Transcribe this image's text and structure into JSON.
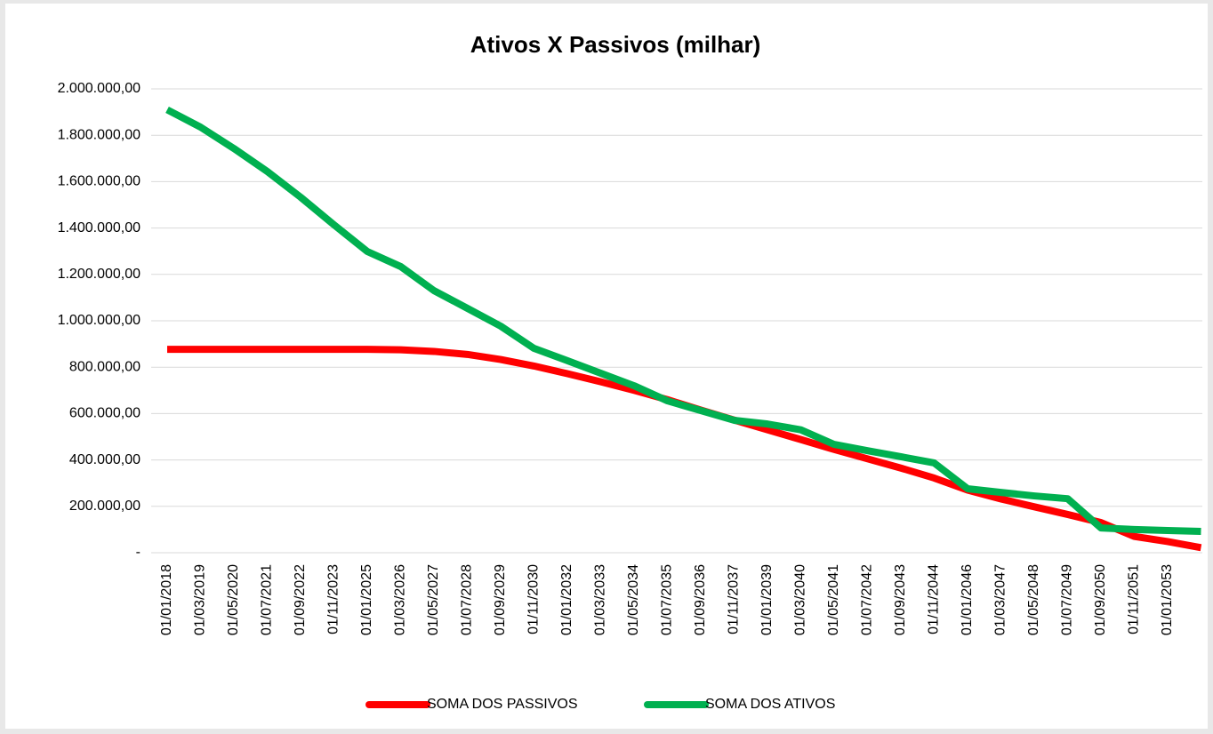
{
  "chart_data": {
    "type": "line",
    "title": "Ativos X Passivos (milhar)",
    "categories": [
      "01/01/2018",
      "01/03/2019",
      "01/05/2020",
      "01/07/2021",
      "01/09/2022",
      "01/11/2023",
      "01/01/2025",
      "01/03/2026",
      "01/05/2027",
      "01/07/2028",
      "01/09/2029",
      "01/11/2030",
      "01/01/2032",
      "01/03/2033",
      "01/05/2034",
      "01/07/2035",
      "01/09/2036",
      "01/11/2037",
      "01/01/2039",
      "01/03/2040",
      "01/05/2041",
      "01/07/2042",
      "01/09/2043",
      "01/11/2044",
      "01/01/2046",
      "01/03/2047",
      "01/05/2048",
      "01/07/2049",
      "01/09/2050",
      "01/11/2051",
      "01/01/2053",
      null
    ],
    "series": [
      {
        "name": "SOMA DOS PASSIVOS",
        "color": "#ff0000",
        "values": [
          877000,
          877000,
          877000,
          877000,
          877000,
          877000,
          877000,
          875000,
          868000,
          855000,
          833000,
          805000,
          772000,
          737000,
          700000,
          660000,
          615000,
          572000,
          530000,
          488000,
          445000,
          405000,
          365000,
          322000,
          270000,
          232000,
          198000,
          165000,
          130000,
          70000,
          48000,
          22000
        ]
      },
      {
        "name": "SOMA DOS ATIVOS",
        "color": "#00b050",
        "values": [
          1910000,
          1835000,
          1743000,
          1644000,
          1533000,
          1414000,
          1299000,
          1234000,
          1130000,
          1054000,
          977000,
          881000,
          828000,
          774000,
          720000,
          655000,
          613000,
          571000,
          555000,
          530000,
          467000,
          440000,
          414000,
          387000,
          276000,
          260000,
          245000,
          233000,
          107000,
          100000,
          96000,
          92000
        ]
      }
    ],
    "ylim": [
      0,
      2000000
    ],
    "yticks": [
      {
        "value": 0,
        "label": "-"
      },
      {
        "value": 200000,
        "label": "200.000,00"
      },
      {
        "value": 400000,
        "label": "400.000,00"
      },
      {
        "value": 600000,
        "label": "600.000,00"
      },
      {
        "value": 800000,
        "label": "800.000,00"
      },
      {
        "value": 1000000,
        "label": "1.000.000,00"
      },
      {
        "value": 1200000,
        "label": "1.200.000,00"
      },
      {
        "value": 1400000,
        "label": "1.400.000,00"
      },
      {
        "value": 1600000,
        "label": "1.600.000,00"
      },
      {
        "value": 1800000,
        "label": "1.800.000,00"
      },
      {
        "value": 2000000,
        "label": "2.000.000,00"
      }
    ],
    "grid": true,
    "legend": "bottom"
  }
}
